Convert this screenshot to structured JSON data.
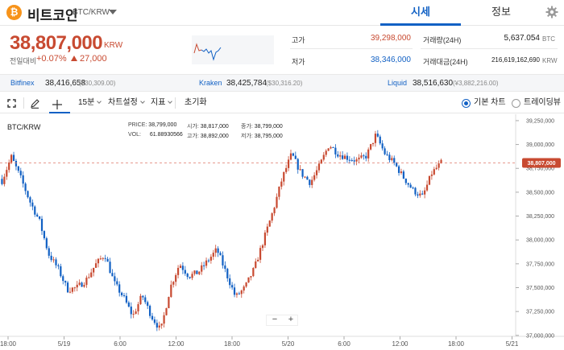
{
  "header": {
    "coin_symbol": "₿",
    "coin_name": "비트코인",
    "pair": "BTC/KRW",
    "tabs": [
      {
        "label": "시세",
        "active": true
      },
      {
        "label": "정보",
        "active": false
      }
    ]
  },
  "ticker": {
    "price": "38,807,000",
    "unit": "KRW",
    "change_label": "전일대비",
    "change_pct": "+0.07%",
    "change_abs": "27,000"
  },
  "stats": {
    "high_label": "고가",
    "high": "39,298,000",
    "low_label": "저가",
    "low": "38,346,000",
    "volume_label": "거래량(24H)",
    "volume": "5,637.054",
    "volume_unit": "BTC",
    "value_label": "거래대금(24H)",
    "value": "216,619,162,690",
    "value_unit": "KRW"
  },
  "exchanges": [
    {
      "name": "Bitfinex",
      "price": "38,416,658",
      "diff": "($30,309.00)"
    },
    {
      "name": "Kraken",
      "price": "38,425,784",
      "diff": "($30,316.20)"
    },
    {
      "name": "Liquid",
      "price": "38,516,630",
      "diff": "(¥3,882,216.00)"
    }
  ],
  "toolbar": {
    "interval": "15분",
    "chart_settings": "차트설정",
    "indicators": "지표",
    "reset": "초기화",
    "mode_basic": "기본 차트",
    "mode_tv": "트레이딩뷰"
  },
  "ohlc": {
    "price_label": "PRICE:",
    "price": "38,799,000",
    "open_label": "시가:",
    "open": "38,817,000",
    "close_label": "종가:",
    "close": "38,799,000",
    "vol_label": "VOL:",
    "vol": "61.88930566",
    "high_label": "고가:",
    "high": "38,892,000",
    "low_label": "저가:",
    "low": "38,795,000"
  },
  "colors": {
    "up": "#c84a31",
    "down": "#1261c4",
    "accent": "#1261c4"
  },
  "chart_data": {
    "type": "candlestick",
    "title": "BTC/KRW",
    "current_price_label": "38,807,000",
    "current_price": 38807000,
    "ylim": [
      36990000,
      39300000
    ],
    "y_ticks": [
      {
        "value": 39250000,
        "label": "39,250,000"
      },
      {
        "value": 39000000,
        "label": "39,000,000"
      },
      {
        "value": 38750000,
        "label": "38,750,000"
      },
      {
        "value": 38500000,
        "label": "38,500,000"
      },
      {
        "value": 38250000,
        "label": "38,250,000"
      },
      {
        "value": 38000000,
        "label": "38,000,000"
      },
      {
        "value": 37750000,
        "label": "37,750,000"
      },
      {
        "value": 37500000,
        "label": "37,500,000"
      },
      {
        "value": 37250000,
        "label": "37,250,000"
      },
      {
        "value": 37000000,
        "label": "37,000,000"
      }
    ],
    "x_ticks": [
      "18:00",
      "5/19",
      "6:00",
      "12:00",
      "18:00",
      "5/20",
      "6:00",
      "12:00",
      "18:00",
      "5/21"
    ],
    "close_anchors": [
      38620000,
      38870000,
      38650000,
      38400000,
      38200000,
      37850000,
      37700000,
      37480000,
      37500000,
      37580000,
      37740000,
      37850000,
      37550000,
      37400000,
      37200000,
      37420000,
      37200000,
      37050000,
      37500000,
      37750000,
      37620000,
      37660000,
      37780000,
      37900000,
      37650000,
      37400000,
      37500000,
      37700000,
      38000000,
      38300000,
      38650000,
      38900000,
      38700000,
      38600000,
      38780000,
      39000000,
      38900000,
      38860000,
      38830000,
      38880000,
      39100000,
      38900000,
      38800000,
      38650000,
      38520000,
      38450000,
      38700000,
      38807000
    ]
  }
}
